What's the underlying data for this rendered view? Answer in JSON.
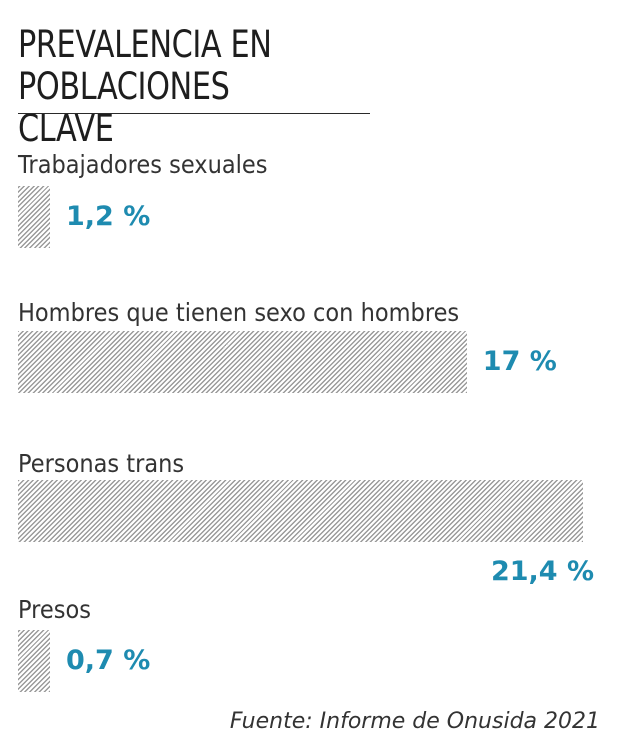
{
  "chart_data": {
    "type": "bar",
    "orientation": "horizontal",
    "title_lines": [
      "PREVALENCIA EN",
      "POBLACIONES CLAVE"
    ],
    "categories": [
      "Trabajadores sexuales",
      "Hombres que tienen sexo con hombres",
      "Personas trans",
      "Presos"
    ],
    "values": [
      1.2,
      17,
      21.4,
      0.7
    ],
    "value_labels": [
      "1,2 %",
      "17 %",
      "21,4 %",
      "0,7 %"
    ],
    "unit": "%",
    "colors": {
      "value_text": "#1e8bb0",
      "bar_hatch": "#9a9a9a",
      "text": "#333333"
    },
    "bar_pattern": "diagonal-hatch",
    "grid": false,
    "legend": "none"
  },
  "source": "Fuente: Informe de Onusida 2021"
}
